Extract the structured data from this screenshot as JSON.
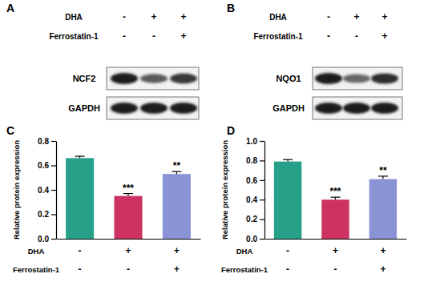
{
  "blots": [
    {
      "panel": "A",
      "row_labels": [
        "DHA",
        "Ferrostatin-1"
      ],
      "conditions": [
        [
          "-",
          "-"
        ],
        [
          "+",
          "-"
        ],
        [
          "+",
          "+"
        ]
      ],
      "bands": [
        {
          "label": "NCF2",
          "intensity": [
            1.0,
            0.7,
            0.85
          ]
        },
        {
          "label": "GAPDH",
          "intensity": [
            1.0,
            1.0,
            1.0
          ]
        }
      ]
    },
    {
      "panel": "B",
      "row_labels": [
        "DHA",
        "Ferrostatin-1"
      ],
      "conditions": [
        [
          "-",
          "-"
        ],
        [
          "+",
          "-"
        ],
        [
          "+",
          "+"
        ]
      ],
      "bands": [
        {
          "label": "NQO1",
          "intensity": [
            1.0,
            0.65,
            0.9
          ]
        },
        {
          "label": "GAPDH",
          "intensity": [
            1.0,
            1.0,
            1.0
          ]
        }
      ]
    }
  ],
  "chart_data": [
    {
      "type": "bar",
      "title": "C",
      "y_label": "Relative protein expression",
      "row_labels": [
        "DHA",
        "Ferrostatin-1"
      ],
      "categories": [
        [
          "-",
          "-"
        ],
        [
          "+",
          "-"
        ],
        [
          "+",
          "+"
        ]
      ],
      "values": [
        0.66,
        0.35,
        0.53
      ],
      "errors": [
        0.015,
        0.02,
        0.02
      ],
      "colors": [
        "#27a08a",
        "#cc3363",
        "#8a93d6"
      ],
      "ylim": [
        0,
        0.8
      ],
      "yticks": [
        {
          "value": 0,
          "label": "0.0"
        },
        0.2,
        0.4,
        0.6,
        0.8
      ],
      "annotations": [
        {
          "x": 1,
          "text": "***"
        },
        {
          "x": 2,
          "text": "**"
        }
      ]
    },
    {
      "type": "bar",
      "title": "D",
      "y_label": "Relative protein expression",
      "row_labels": [
        "DHA",
        "Ferrostatin-1"
      ],
      "categories": [
        [
          "-",
          "-"
        ],
        [
          "+",
          "-"
        ],
        [
          "+",
          "+"
        ]
      ],
      "values": [
        0.79,
        0.4,
        0.61
      ],
      "errors": [
        0.02,
        0.025,
        0.03
      ],
      "colors": [
        "#27a08a",
        "#cc3363",
        "#8a93d6"
      ],
      "ylim": [
        0,
        1.0
      ],
      "yticks": [
        {
          "value": 0,
          "label": "0.0"
        },
        0.2,
        0.4,
        0.6,
        0.8,
        {
          "value": 1.0,
          "label": "1.0"
        }
      ],
      "annotations": [
        {
          "x": 1,
          "text": "***"
        },
        {
          "x": 2,
          "text": "**"
        }
      ]
    }
  ]
}
